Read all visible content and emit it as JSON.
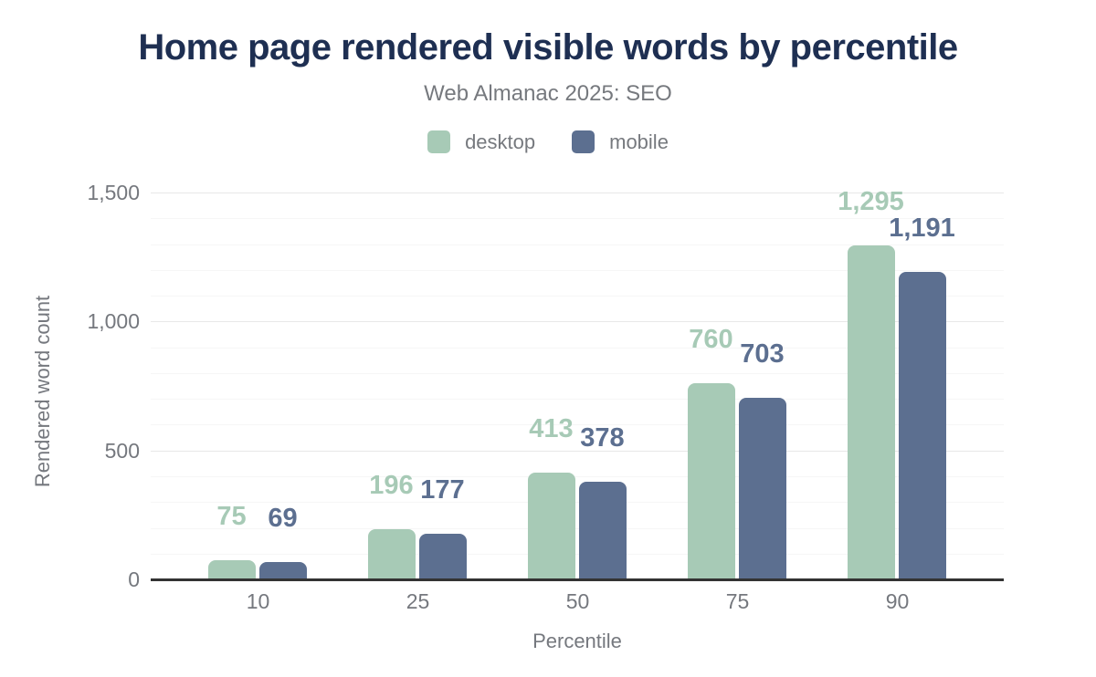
{
  "title": "Home page rendered visible words by percentile",
  "subtitle": "Web Almanac 2025: SEO",
  "colors": {
    "title_text": "#1e2f52",
    "muted_text": "#75787e",
    "axis_line": "#333333",
    "grid_major": "#e8e8e8",
    "grid_minor": "#f6f6f6",
    "desktop": "#a7cab6",
    "mobile": "#5c6f90",
    "background": "#ffffff"
  },
  "legend": {
    "items": [
      {
        "label": "desktop",
        "color": "#a7cab6"
      },
      {
        "label": "mobile",
        "color": "#5c6f90"
      }
    ]
  },
  "chart_data": {
    "type": "bar",
    "title": "Home page rendered visible words by percentile",
    "subtitle": "Web Almanac 2025: SEO",
    "categories": [
      "10",
      "25",
      "50",
      "75",
      "90"
    ],
    "series": [
      {
        "name": "desktop",
        "color": "#a7cab6",
        "values": [
          75,
          196,
          413,
          760,
          1295
        ],
        "value_labels": [
          "75",
          "196",
          "413",
          "760",
          "1,295"
        ]
      },
      {
        "name": "mobile",
        "color": "#5c6f90",
        "values": [
          69,
          177,
          378,
          703,
          1191
        ],
        "value_labels": [
          "69",
          "177",
          "378",
          "703",
          "1,191"
        ]
      }
    ],
    "xlabel": "Percentile",
    "ylabel": "Rendered word count",
    "ylim": [
      0,
      1500
    ],
    "yticks": [
      {
        "value": 0,
        "label": "0"
      },
      {
        "value": 500,
        "label": "500"
      },
      {
        "value": 1000,
        "label": "1,000"
      },
      {
        "value": 1500,
        "label": "1,500"
      }
    ],
    "minor_tick_interval": 100,
    "grid": true,
    "legend_position": "top"
  }
}
